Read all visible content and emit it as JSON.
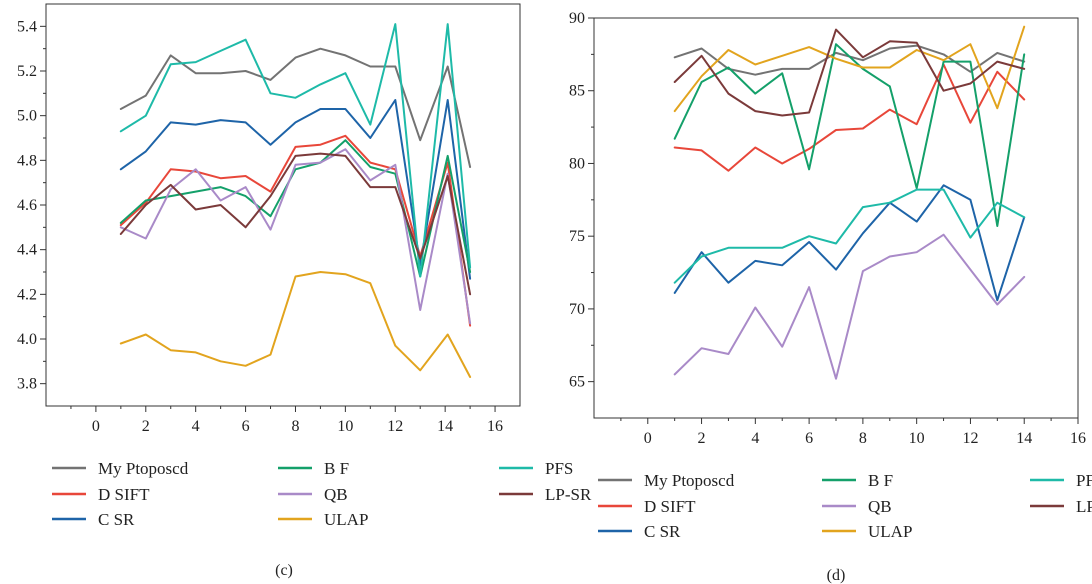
{
  "chart_data": [
    {
      "type": "line",
      "panel_label": "(c)",
      "xlim": [
        -2,
        17
      ],
      "ylim": [
        3.7,
        5.5
      ],
      "x_ticks": [
        0,
        2,
        4,
        6,
        8,
        10,
        12,
        14,
        16
      ],
      "y_ticks": [
        3.8,
        4.0,
        4.2,
        4.4,
        4.6,
        4.8,
        5.0,
        5.2,
        5.4
      ],
      "y_tick_labels": [
        "3.8",
        "4.0",
        "4.2",
        "4.4",
        "4.6",
        "4.8",
        "5.0",
        "5.2",
        "5.4"
      ],
      "series": [
        {
          "name": "My Ptoposcd",
          "color": "#737373",
          "x": [
            1,
            2,
            3,
            4,
            5,
            6,
            7,
            8,
            9,
            10,
            11,
            12,
            13,
            14.1,
            15
          ],
          "y": [
            5.03,
            5.09,
            5.27,
            5.19,
            5.19,
            5.2,
            5.16,
            5.26,
            5.3,
            5.27,
            5.22,
            5.22,
            4.89,
            5.22,
            4.77
          ]
        },
        {
          "name": "D SIFT",
          "color": "#e8473a",
          "x": [
            1,
            2,
            3,
            4,
            5,
            6,
            7,
            8,
            9,
            10,
            11,
            12,
            13,
            14.1,
            15
          ],
          "y": [
            4.51,
            4.61,
            4.76,
            4.75,
            4.72,
            4.73,
            4.66,
            4.86,
            4.87,
            4.91,
            4.79,
            4.76,
            4.37,
            4.79,
            4.06
          ]
        },
        {
          "name": "C SR",
          "color": "#1e64a8",
          "x": [
            1,
            2,
            3,
            4,
            5,
            6,
            7,
            8,
            9,
            10,
            11,
            12,
            13,
            14.1,
            15
          ],
          "y": [
            4.76,
            4.84,
            4.97,
            4.96,
            4.98,
            4.97,
            4.87,
            4.97,
            5.03,
            5.03,
            4.9,
            5.07,
            4.33,
            5.07,
            4.27
          ]
        },
        {
          "name": "B F",
          "color": "#14a06a",
          "x": [
            1,
            2,
            3,
            4,
            5,
            6,
            7,
            8,
            9,
            10,
            11,
            12,
            13,
            14.1,
            15
          ],
          "y": [
            4.52,
            4.62,
            4.64,
            4.66,
            4.68,
            4.64,
            4.55,
            4.76,
            4.79,
            4.89,
            4.77,
            4.74,
            4.28,
            4.82,
            4.3
          ]
        },
        {
          "name": "QB",
          "color": "#a98ac8",
          "x": [
            1,
            2,
            3,
            4,
            5,
            6,
            7,
            8,
            9,
            10,
            11,
            12,
            13,
            14.1,
            15
          ],
          "y": [
            4.5,
            4.45,
            4.67,
            4.76,
            4.62,
            4.68,
            4.49,
            4.78,
            4.79,
            4.85,
            4.71,
            4.78,
            4.13,
            4.74,
            4.07
          ]
        },
        {
          "name": "ULAP",
          "color": "#e2a41e",
          "x": [
            1,
            2,
            3,
            4,
            5,
            6,
            7,
            8,
            9,
            10,
            11,
            12,
            13,
            14.1,
            15
          ],
          "y": [
            3.98,
            4.02,
            3.95,
            3.94,
            3.9,
            3.88,
            3.93,
            4.28,
            4.3,
            4.29,
            4.25,
            3.97,
            3.86,
            4.02,
            3.83
          ]
        },
        {
          "name": "PFS",
          "color": "#1ebaa8",
          "x": [
            1,
            2,
            3,
            4,
            5,
            6,
            7,
            8,
            9,
            10,
            11,
            12,
            13,
            14.1,
            15
          ],
          "y": [
            4.93,
            5.0,
            5.23,
            5.24,
            5.29,
            5.34,
            5.1,
            5.08,
            5.14,
            5.19,
            4.96,
            5.41,
            4.28,
            5.41,
            4.32
          ]
        },
        {
          "name": "LP-SR",
          "color": "#7b3a3a",
          "x": [
            1,
            2,
            3,
            4,
            5,
            6,
            7,
            8,
            9,
            10,
            11,
            12,
            13,
            14.1,
            15
          ],
          "y": [
            4.47,
            4.6,
            4.69,
            4.58,
            4.6,
            4.5,
            4.64,
            4.82,
            4.83,
            4.82,
            4.68,
            4.68,
            4.36,
            4.73,
            4.2
          ]
        }
      ]
    },
    {
      "type": "line",
      "panel_label": "(d)",
      "xlim": [
        -2,
        16
      ],
      "ylim": [
        62.5,
        90
      ],
      "x_ticks": [
        0,
        2,
        4,
        6,
        8,
        10,
        12,
        14,
        16
      ],
      "y_ticks": [
        65,
        70,
        75,
        80,
        85,
        90
      ],
      "y_tick_labels": [
        "65",
        "70",
        "75",
        "80",
        "85",
        "90"
      ],
      "series": [
        {
          "name": "My Ptoposcd",
          "color": "#737373",
          "x": [
            1,
            2,
            3,
            4,
            5,
            6,
            7,
            8,
            9,
            10,
            11,
            12,
            13,
            14
          ],
          "y": [
            87.3,
            87.9,
            86.5,
            86.1,
            86.5,
            86.5,
            87.6,
            87.1,
            87.9,
            88.1,
            87.5,
            86.3,
            87.6,
            87.0
          ]
        },
        {
          "name": "D SIFT",
          "color": "#e8473a",
          "x": [
            1,
            2,
            3,
            4,
            5,
            6,
            7,
            8,
            9,
            10,
            11,
            12,
            13,
            14
          ],
          "y": [
            81.1,
            80.9,
            79.5,
            81.1,
            80.0,
            81.0,
            82.3,
            82.4,
            83.7,
            82.7,
            86.8,
            82.8,
            86.3,
            84.4
          ]
        },
        {
          "name": "C SR",
          "color": "#1e64a8",
          "x": [
            1,
            2,
            3,
            4,
            5,
            6,
            7,
            8,
            9,
            10,
            11,
            12,
            13,
            14
          ],
          "y": [
            71.1,
            73.9,
            71.8,
            73.3,
            73.0,
            74.6,
            72.7,
            75.2,
            77.3,
            76.0,
            78.5,
            77.5,
            70.6,
            76.3
          ]
        },
        {
          "name": "B F",
          "color": "#14a06a",
          "x": [
            1,
            2,
            3,
            4,
            5,
            6,
            7,
            8,
            9,
            10,
            11,
            12,
            13,
            14
          ],
          "y": [
            81.7,
            85.6,
            86.6,
            84.8,
            86.2,
            79.6,
            88.2,
            86.5,
            85.3,
            78.3,
            87.0,
            87.0,
            75.7,
            87.5
          ]
        },
        {
          "name": "QB",
          "color": "#a98ac8",
          "x": [
            1,
            2,
            3,
            4,
            5,
            6,
            7,
            8,
            9,
            10,
            11,
            12,
            13,
            14
          ],
          "y": [
            65.5,
            67.3,
            66.9,
            70.1,
            67.4,
            71.5,
            65.2,
            72.6,
            73.6,
            73.9,
            75.1,
            72.7,
            70.3,
            72.2
          ]
        },
        {
          "name": "ULAP",
          "color": "#e2a41e",
          "x": [
            1,
            2,
            3,
            4,
            5,
            6,
            7,
            8,
            9,
            10,
            11,
            12,
            13,
            14
          ],
          "y": [
            83.6,
            86.0,
            87.8,
            86.8,
            87.4,
            88.0,
            87.2,
            86.6,
            86.6,
            87.8,
            87.1,
            88.2,
            83.8,
            89.4
          ]
        },
        {
          "name": "PFS",
          "color": "#1ebaa8",
          "x": [
            1,
            2,
            3,
            4,
            5,
            6,
            7,
            8,
            9,
            10,
            11,
            12,
            13,
            14
          ],
          "y": [
            71.8,
            73.6,
            74.2,
            74.2,
            74.2,
            75.0,
            74.5,
            77.0,
            77.3,
            78.2,
            78.2,
            74.9,
            77.3,
            76.3
          ]
        },
        {
          "name": "LP-SR",
          "color": "#7b3a3a",
          "x": [
            1,
            2,
            3,
            4,
            5,
            6,
            7,
            8,
            9,
            10,
            11,
            12,
            13,
            14
          ],
          "y": [
            85.6,
            87.4,
            84.8,
            83.6,
            83.3,
            83.5,
            89.2,
            87.3,
            88.4,
            88.3,
            85.0,
            85.5,
            87.0,
            86.5
          ]
        }
      ]
    }
  ]
}
